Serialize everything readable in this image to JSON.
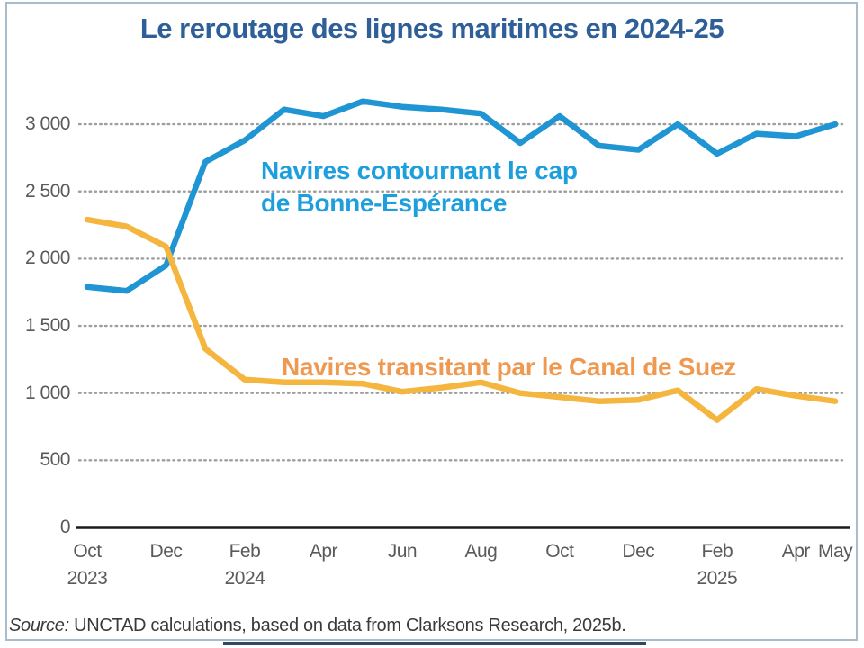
{
  "page": {
    "title": "Le reroutage des lignes maritimes en 2024-25",
    "source_prefix": "Source:",
    "source_text": " UNCTAD calculations, based on data from Clarksons Research, 2025b."
  },
  "colors": {
    "title": "#2f5f98",
    "cape_line": "#2095d3",
    "suez_line": "#f4b63f",
    "cape_label": "#1e9fdd",
    "suez_label": "#ef9850",
    "axis_text": "#5a5a5a",
    "grid": "#9e9e9e",
    "axis_line": "#1a1a1a",
    "frame_border": "#a9bccb",
    "bottom_bar": "#2c4a63"
  },
  "chart_data": {
    "type": "line",
    "title": "Le reroutage des lignes maritimes en 2024-25",
    "xlabel": "",
    "ylabel": "",
    "ylim": [
      0,
      3250
    ],
    "grid": "horizontal-dotted",
    "legend_position": "inline-annotations",
    "x": [
      "Oct 2023",
      "Nov 2023",
      "Dec 2023",
      "Jan 2024",
      "Feb 2024",
      "Mar 2024",
      "Apr 2024",
      "May 2024",
      "Jun 2024",
      "Jul 2024",
      "Aug 2024",
      "Sep 2024",
      "Oct 2024",
      "Nov 2024",
      "Dec 2024",
      "Jan 2025",
      "Feb 2025",
      "Mar 2025",
      "Apr 2025",
      "May 2025"
    ],
    "series": [
      {
        "name": "Navires contournant le cap de Bonne-Espérance",
        "color": "#2095d3",
        "values": [
          1790,
          1760,
          1950,
          2720,
          2880,
          3110,
          3060,
          3170,
          3130,
          3110,
          3080,
          2860,
          3060,
          2840,
          2810,
          3000,
          2780,
          2930,
          2910,
          3000
        ]
      },
      {
        "name": "Navires transitant par le Canal de Suez",
        "color": "#f4b63f",
        "values": [
          2290,
          2240,
          2090,
          1330,
          1100,
          1080,
          1080,
          1070,
          1010,
          1040,
          1080,
          1000,
          970,
          940,
          950,
          1020,
          800,
          1030,
          980,
          940
        ]
      }
    ],
    "yticks": [
      0,
      500,
      1000,
      1500,
      2000,
      2500,
      3000
    ],
    "ytick_labels": [
      "0",
      "500",
      "1 000",
      "1 500",
      "2 000",
      "2 500",
      "3 000"
    ],
    "xticks": [
      {
        "index": 0,
        "label": "Oct",
        "year": "2023"
      },
      {
        "index": 2,
        "label": "Dec",
        "year": ""
      },
      {
        "index": 4,
        "label": "Feb",
        "year": "2024"
      },
      {
        "index": 6,
        "label": "Apr",
        "year": ""
      },
      {
        "index": 8,
        "label": "Jun",
        "year": ""
      },
      {
        "index": 10,
        "label": "Aug",
        "year": ""
      },
      {
        "index": 12,
        "label": "Oct",
        "year": ""
      },
      {
        "index": 14,
        "label": "Dec",
        "year": ""
      },
      {
        "index": 16,
        "label": "Feb",
        "year": "2025"
      },
      {
        "index": 18,
        "label": "Apr",
        "year": ""
      },
      {
        "index": 19,
        "label": "May",
        "year": ""
      }
    ],
    "annotations": [
      {
        "lines": [
          "Navires contournant le cap",
          "de Bonne-Espérance"
        ],
        "color": "#1e9fdd"
      },
      {
        "lines": [
          "Navires transitant par le Canal de Suez"
        ],
        "color": "#ef9850"
      }
    ]
  }
}
